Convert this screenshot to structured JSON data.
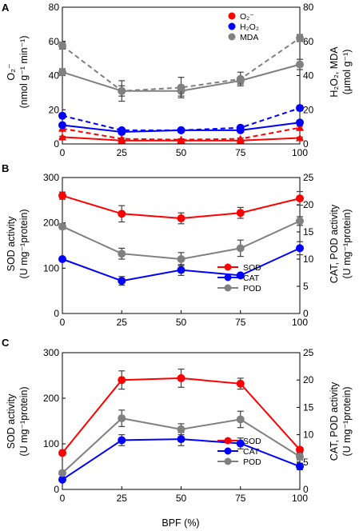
{
  "chart_data": [
    {
      "panel": "A",
      "type": "line",
      "x": [
        0,
        25,
        50,
        75,
        100
      ],
      "xticks": [
        "0",
        "25",
        "50",
        "75",
        "100"
      ],
      "ylim_left": [
        0,
        80
      ],
      "yticks_left": [
        "0",
        "20",
        "40",
        "60",
        "80"
      ],
      "ylim_right": [
        0,
        80
      ],
      "yticks_right": [
        "0",
        "20",
        "40",
        "60",
        "80"
      ],
      "ylabel_left": [
        "O₂⁻",
        "(nmol g⁻¹ min⁻¹)"
      ],
      "ylabel_right": "H₂O₂, MDA",
      "ylabel_right_units": "(μmol g⁻¹)",
      "legend_position": "top-right",
      "legend": [
        {
          "label": "O₂⁻",
          "color": "#ff0000"
        },
        {
          "label": "H₂O₂",
          "color": "#0000ff"
        },
        {
          "label": "MDA",
          "color": "#808080"
        }
      ],
      "series": [
        {
          "color": "#ff0000",
          "axis": "left",
          "dash": false,
          "marker": "triangle",
          "values": [
            4,
            2,
            2,
            2,
            3.5
          ],
          "err": [
            0.5,
            0.4,
            0.4,
            0.4,
            0.5
          ]
        },
        {
          "color": "#ff0000",
          "axis": "left",
          "dash": true,
          "marker": "triangle",
          "values": [
            9,
            3,
            2.5,
            3,
            9.5
          ],
          "err": [
            0.8,
            0.5,
            0.5,
            0.5,
            0.8
          ]
        },
        {
          "color": "#0000ff",
          "axis": "right",
          "dash": false,
          "marker": "circle",
          "values": [
            11,
            7,
            8,
            8,
            12.5
          ],
          "err": [
            1,
            1,
            1,
            1,
            1.2
          ]
        },
        {
          "color": "#0000ff",
          "axis": "right",
          "dash": true,
          "marker": "circle",
          "values": [
            16.5,
            8,
            8,
            9.5,
            21
          ],
          "err": [
            1.5,
            1,
            1,
            1,
            1.5
          ]
        },
        {
          "color": "#808080",
          "axis": "right",
          "dash": false,
          "marker": "circle",
          "values": [
            42,
            31,
            31,
            37,
            46.5
          ],
          "err": [
            2,
            3,
            3,
            2,
            3
          ]
        },
        {
          "color": "#808080",
          "axis": "right",
          "dash": true,
          "marker": "circle",
          "values": [
            57.5,
            31,
            33,
            38,
            62
          ],
          "err": [
            2,
            6,
            6,
            4,
            2
          ]
        }
      ]
    },
    {
      "panel": "B",
      "type": "line",
      "x": [
        0,
        25,
        50,
        75,
        100
      ],
      "xticks": [
        "0",
        "25",
        "50",
        "75",
        "100"
      ],
      "ylim_left": [
        0,
        300
      ],
      "yticks_left": [
        "0",
        "100",
        "200",
        "300"
      ],
      "ylim_right": [
        0,
        25
      ],
      "yticks_right": [
        "0",
        "5",
        "10",
        "15",
        "20",
        "25"
      ],
      "ylabel_left": [
        "SOD activity",
        "(U mg⁻¹protein)"
      ],
      "ylabel_right": "CAT, POD activity",
      "ylabel_right_units": "(U mg⁻¹protein)",
      "legend_position": "bottom-right",
      "legend": [
        {
          "label": "SOD",
          "color": "#ff0000"
        },
        {
          "label": "CAT",
          "color": "#0000ff"
        },
        {
          "label": "POD",
          "color": "#808080"
        }
      ],
      "series": [
        {
          "name": "SOD",
          "color": "#ff0000",
          "axis": "left",
          "dash": false,
          "marker": "circle",
          "values": [
            260,
            220,
            210,
            222,
            254
          ],
          "err": [
            8,
            18,
            12,
            12,
            15
          ]
        },
        {
          "name": "CAT",
          "color": "#0000ff",
          "axis": "right",
          "dash": false,
          "marker": "circle",
          "values": [
            10,
            6,
            8,
            7,
            12
          ],
          "err": [
            0.3,
            0.8,
            1,
            0.3,
            1.2
          ]
        },
        {
          "name": "POD",
          "color": "#808080",
          "axis": "right",
          "dash": false,
          "marker": "circle",
          "values": [
            16,
            11,
            10,
            12,
            17
          ],
          "err": [
            0.5,
            1,
            1.2,
            1.5,
            0.8
          ]
        }
      ]
    },
    {
      "panel": "C",
      "type": "line",
      "x": [
        0,
        25,
        50,
        75,
        100
      ],
      "xticks": [
        "0",
        "25",
        "50",
        "75",
        "100"
      ],
      "xlabel": "BPF (%)",
      "ylim_left": [
        0,
        300
      ],
      "yticks_left": [
        "0",
        "100",
        "200",
        "300"
      ],
      "ylim_right": [
        0,
        25
      ],
      "yticks_right": [
        "0",
        "5",
        "10",
        "15",
        "20",
        "25"
      ],
      "ylabel_left": [
        "SOD activity",
        "(U mg⁻¹protein)"
      ],
      "ylabel_right": "CAT, POD activity",
      "ylabel_right_units": "(U mg⁻¹protein)",
      "legend_position": "bottom-right",
      "legend": [
        {
          "label": "SOD",
          "color": "#ff0000"
        },
        {
          "label": "CAT",
          "color": "#0000ff"
        },
        {
          "label": "POD",
          "color": "#808080"
        }
      ],
      "series": [
        {
          "name": "SOD",
          "color": "#ff0000",
          "axis": "left",
          "dash": false,
          "marker": "circle",
          "values": [
            80,
            240,
            244,
            232,
            87
          ],
          "err": [
            5,
            20,
            20,
            12,
            5
          ]
        },
        {
          "name": "CAT",
          "color": "#0000ff",
          "axis": "right",
          "dash": false,
          "marker": "circle",
          "values": [
            1.8,
            9,
            9.2,
            8.4,
            4.2
          ],
          "err": [
            0.3,
            1,
            1.2,
            1,
            0.6
          ]
        },
        {
          "name": "POD",
          "color": "#808080",
          "axis": "right",
          "dash": false,
          "marker": "circle",
          "values": [
            3,
            13,
            11,
            12.8,
            6
          ],
          "err": [
            0.4,
            1.5,
            1,
            1.5,
            0.6
          ]
        }
      ]
    }
  ]
}
